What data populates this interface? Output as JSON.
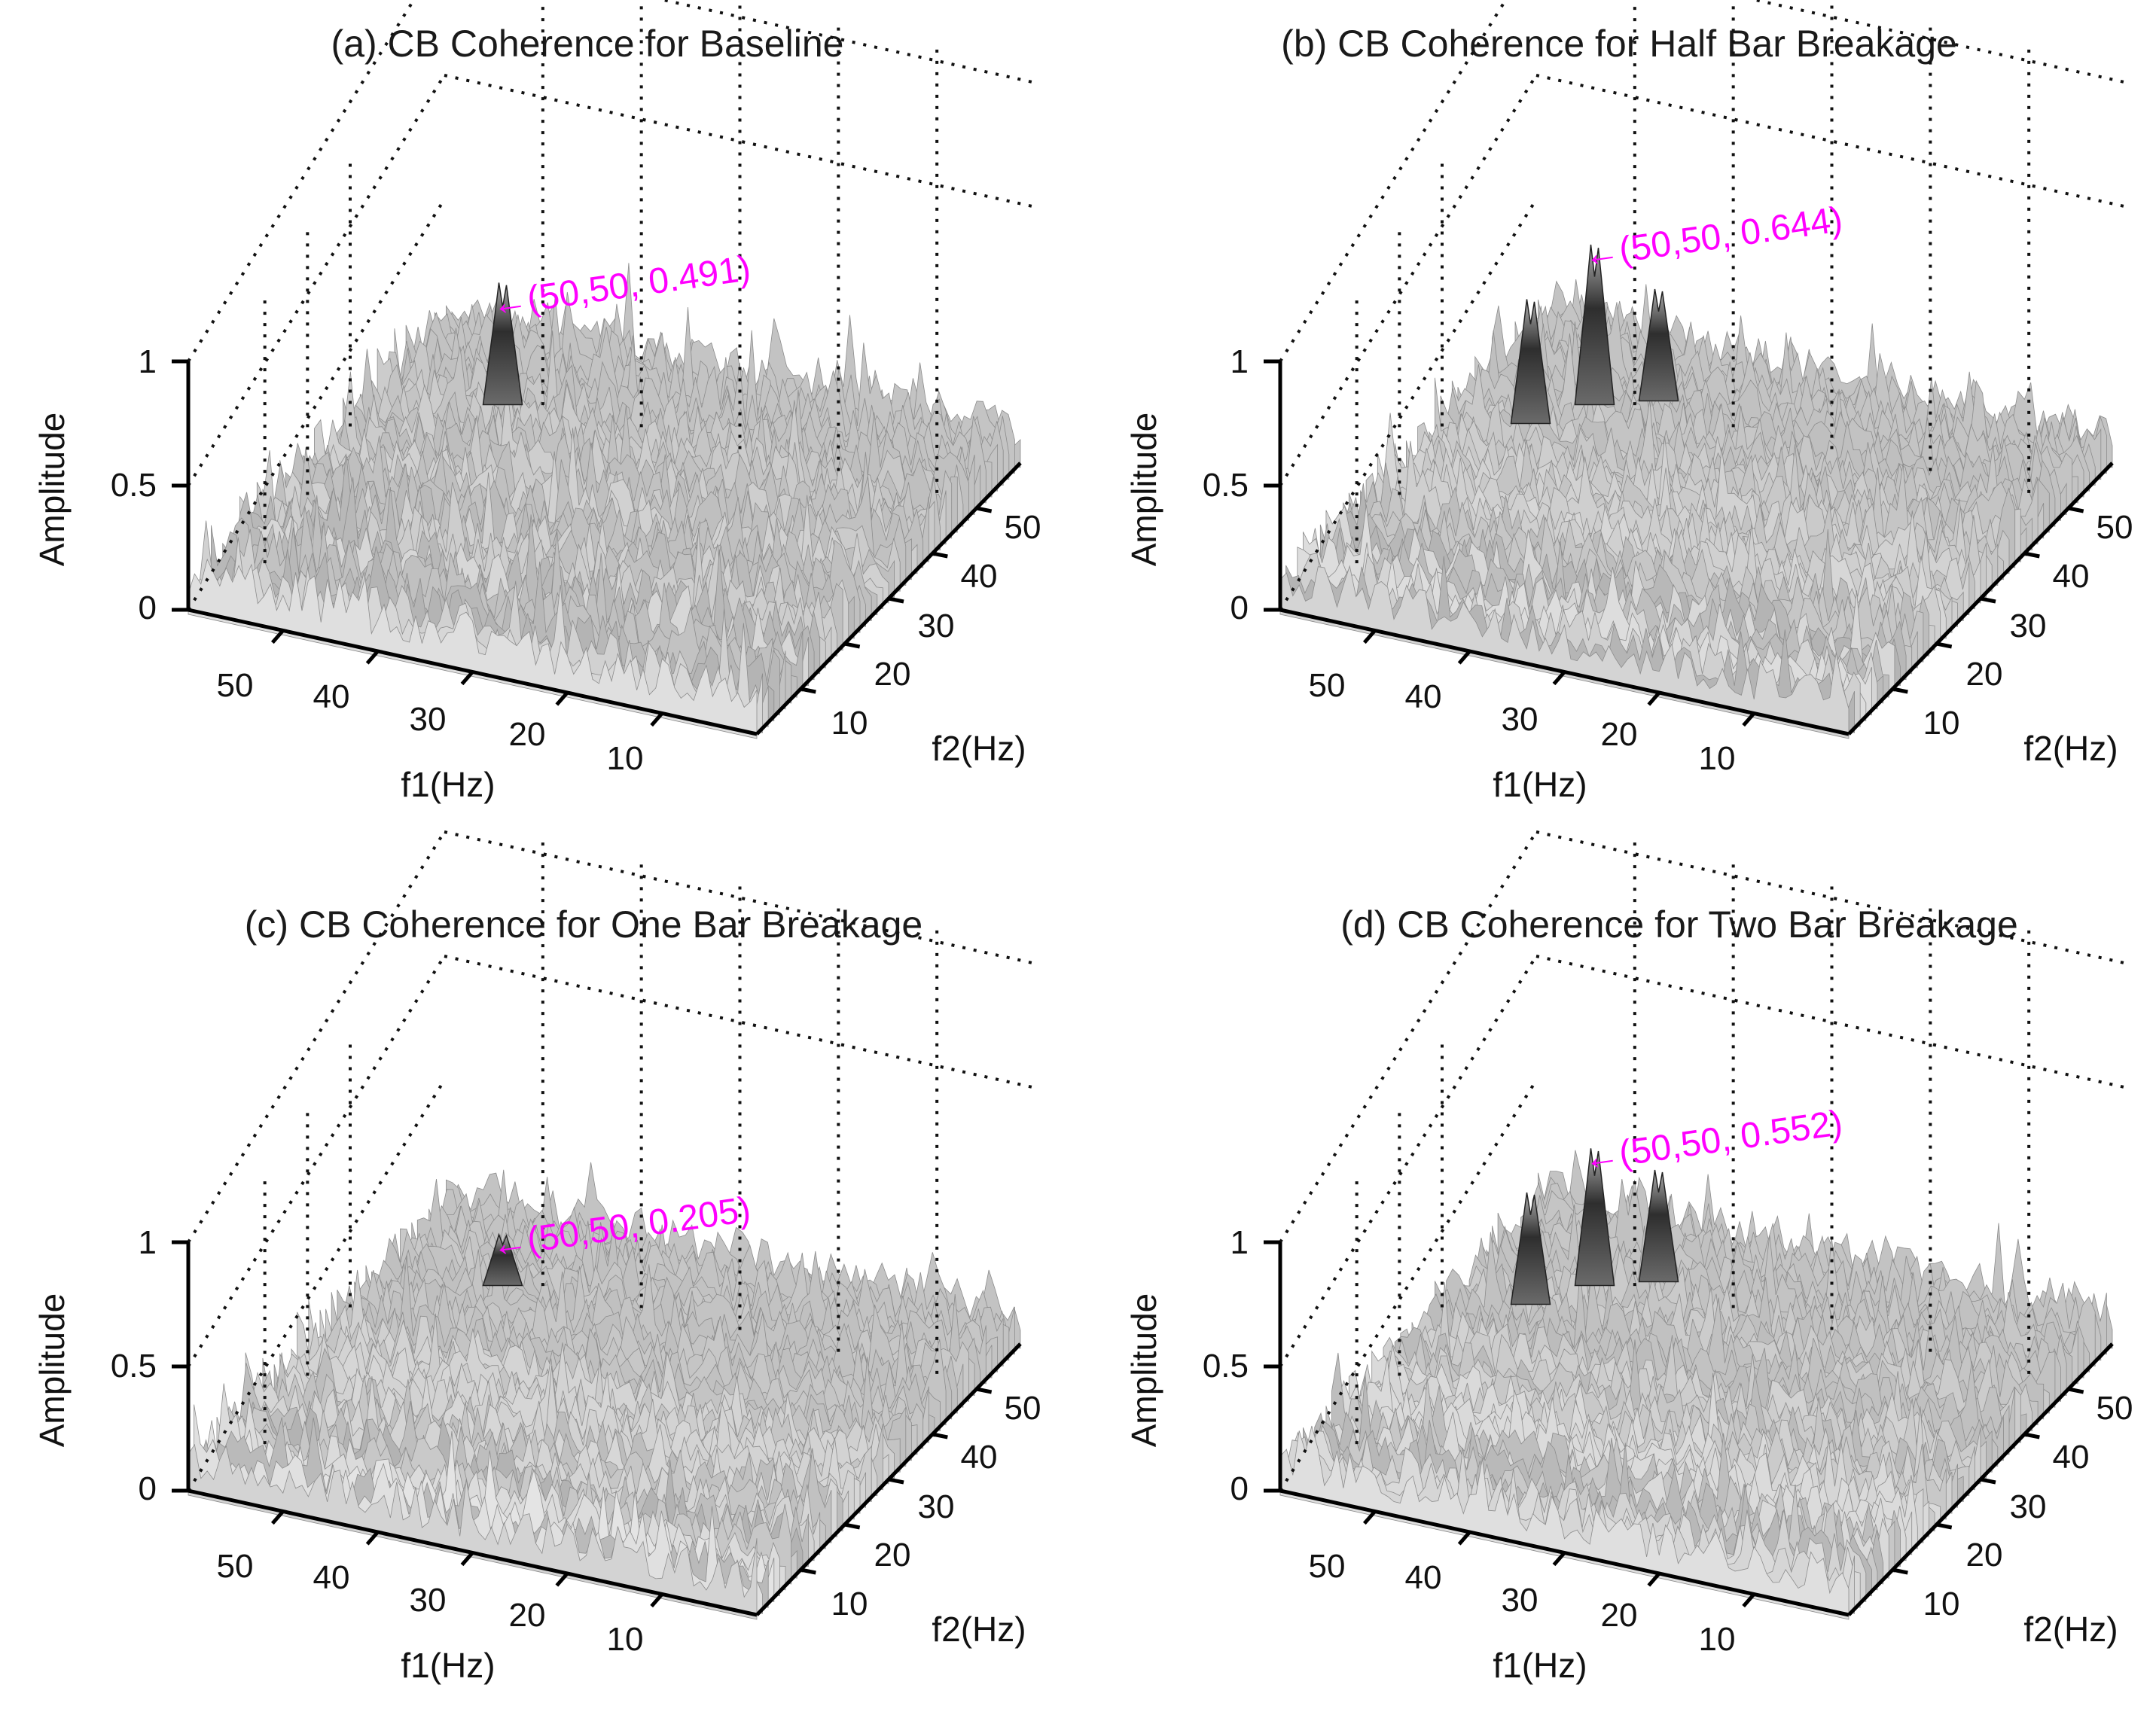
{
  "chart_data": [
    {
      "type": "surface3d",
      "title": "(a) CB Coherence for Baseline",
      "xlabel": "f1(Hz)",
      "ylabel": "f2(Hz)",
      "zlabel": "Amplitude",
      "xticks": [
        "50",
        "40",
        "30",
        "20",
        "10"
      ],
      "yticks": [
        "10",
        "20",
        "30",
        "40",
        "50"
      ],
      "zticks": [
        "0",
        "0.5",
        "1"
      ],
      "xlim": [
        0,
        60
      ],
      "ylim": [
        0,
        60
      ],
      "zlim": [
        0,
        1
      ],
      "grid": true,
      "peak": {
        "f1": 50,
        "f2": 50,
        "value": 0.491
      },
      "side_peaks": [],
      "noise_level": 0.25,
      "annotation": "←(50,50, 0.491)"
    },
    {
      "type": "surface3d",
      "title": "(b) CB Coherence for Half Bar Breakage",
      "xlabel": "f1(Hz)",
      "ylabel": "f2(Hz)",
      "zlabel": "Amplitude",
      "xticks": [
        "50",
        "40",
        "30",
        "20",
        "10"
      ],
      "yticks": [
        "10",
        "20",
        "30",
        "40",
        "50"
      ],
      "zticks": [
        "0",
        "0.5",
        "1"
      ],
      "xlim": [
        0,
        60
      ],
      "ylim": [
        0,
        60
      ],
      "zlim": [
        0,
        1
      ],
      "grid": true,
      "peak": {
        "f1": 50,
        "f2": 50,
        "value": 0.644
      },
      "side_peaks": [
        0.5,
        0.45
      ],
      "noise_level": 0.22,
      "annotation": "←(50,50, 0.644)"
    },
    {
      "type": "surface3d",
      "title": "(c) CB Coherence for One Bar Breakage",
      "xlabel": "f1(Hz)",
      "ylabel": "f2(Hz)",
      "zlabel": "Amplitude",
      "xticks": [
        "50",
        "40",
        "30",
        "20",
        "10"
      ],
      "yticks": [
        "10",
        "20",
        "30",
        "40",
        "50"
      ],
      "zticks": [
        "0",
        "0.5",
        "1"
      ],
      "xlim": [
        0,
        60
      ],
      "ylim": [
        0,
        60
      ],
      "zlim": [
        0,
        1
      ],
      "grid": true,
      "peak": {
        "f1": 50,
        "f2": 50,
        "value": 0.205
      },
      "side_peaks": [],
      "noise_level": 0.22,
      "annotation": "←(50,50, 0.205)"
    },
    {
      "type": "surface3d",
      "title": "(d) CB Coherence for Two Bar Breakage",
      "xlabel": "f1(Hz)",
      "ylabel": "f2(Hz)",
      "zlabel": "Amplitude",
      "xticks": [
        "50",
        "40",
        "30",
        "20",
        "10"
      ],
      "yticks": [
        "10",
        "20",
        "30",
        "40",
        "50"
      ],
      "zticks": [
        "0",
        "0.5",
        "1"
      ],
      "xlim": [
        0,
        60
      ],
      "ylim": [
        0,
        60
      ],
      "zlim": [
        0,
        1
      ],
      "grid": true,
      "peak": {
        "f1": 50,
        "f2": 50,
        "value": 0.552
      },
      "side_peaks": [
        0.45,
        0.45
      ],
      "noise_level": 0.22,
      "annotation": "←(50,50, 0.552)"
    }
  ],
  "colors": {
    "annotation": "#ff00ff",
    "surface_light": "#e8e8e8",
    "surface_dark": "#2e2e2e",
    "axis": "#000000"
  }
}
